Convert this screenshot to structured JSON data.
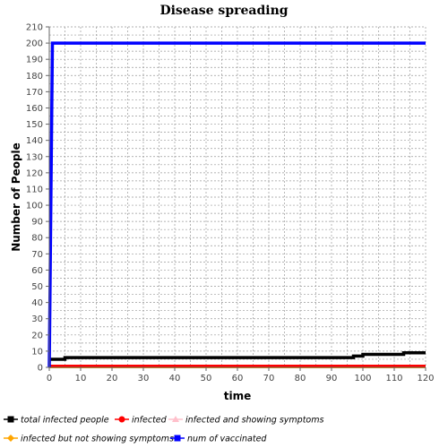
{
  "chart_data": {
    "type": "line",
    "title": "Disease spreading",
    "xlabel": "time",
    "ylabel": "Number of People",
    "xlim": [
      0,
      120
    ],
    "ylim": [
      0,
      210
    ],
    "x_ticks": [
      0,
      10,
      20,
      30,
      40,
      50,
      60,
      70,
      80,
      90,
      100,
      110,
      120
    ],
    "y_ticks": [
      0,
      10,
      20,
      30,
      40,
      50,
      60,
      70,
      80,
      90,
      100,
      110,
      120,
      130,
      140,
      150,
      160,
      170,
      180,
      190,
      200,
      210
    ],
    "grid": true,
    "legend_position": "bottom",
    "series": [
      {
        "name": "total infected people",
        "color": "#000000",
        "marker": "square",
        "points": [
          [
            0,
            5
          ],
          [
            5,
            5
          ],
          [
            5,
            6
          ],
          [
            97,
            6
          ],
          [
            97,
            7
          ],
          [
            100,
            7
          ],
          [
            100,
            8
          ],
          [
            113,
            8
          ],
          [
            113,
            9
          ],
          [
            120,
            9
          ]
        ]
      },
      {
        "name": "infected",
        "color": "#ff0000",
        "marker": "circle",
        "points": [
          [
            0,
            1
          ],
          [
            120,
            1
          ]
        ]
      },
      {
        "name": "infected and showing symptoms",
        "color": "#ffc0cb",
        "marker": "triangle",
        "points": [
          [
            0,
            1
          ],
          [
            120,
            1
          ]
        ]
      },
      {
        "name": "infected but not showing symptoms",
        "color": "#ffa500",
        "marker": "diamond",
        "points": [
          [
            0,
            0
          ],
          [
            120,
            0
          ]
        ]
      },
      {
        "name": "num of vaccinated",
        "color": "#0000ff",
        "marker": "square",
        "points": [
          [
            0,
            0
          ],
          [
            1,
            200
          ],
          [
            120,
            200
          ]
        ]
      }
    ]
  }
}
